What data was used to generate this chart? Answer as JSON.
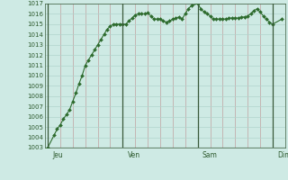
{
  "background_color": "#ceeae4",
  "plot_bg_color": "#ceeae4",
  "line_color": "#2d6b2d",
  "marker_color": "#2d6b2d",
  "grid_color": "#b0d4cc",
  "grid_color_v": "#c0a0a0",
  "tick_label_color": "#2d5a2d",
  "day_line_color": "#3a5a3a",
  "separator_color": "#3a5a3a",
  "ylim": [
    1003,
    1017
  ],
  "yticks": [
    1003,
    1004,
    1005,
    1006,
    1007,
    1008,
    1009,
    1010,
    1011,
    1012,
    1013,
    1014,
    1015,
    1016,
    1017
  ],
  "day_labels": [
    "Jeu",
    "Ven",
    "Sam",
    "Dim"
  ],
  "day_positions": [
    0,
    24,
    48,
    72
  ],
  "xlim": [
    -1,
    76
  ],
  "x_values": [
    0,
    2,
    3,
    4,
    5,
    6,
    7,
    8,
    9,
    10,
    11,
    12,
    13,
    14,
    15,
    16,
    17,
    18,
    19,
    20,
    21,
    22,
    23,
    24,
    25,
    26,
    27,
    28,
    29,
    30,
    31,
    32,
    33,
    34,
    35,
    36,
    37,
    38,
    39,
    40,
    41,
    42,
    43,
    44,
    45,
    46,
    48,
    49,
    50,
    51,
    52,
    53,
    54,
    55,
    56,
    57,
    58,
    59,
    60,
    61,
    62,
    63,
    64,
    65,
    66,
    67,
    68,
    69,
    70,
    71,
    72,
    75
  ],
  "y_values": [
    1003,
    1004.2,
    1004.8,
    1005.2,
    1005.8,
    1006.2,
    1006.7,
    1007.5,
    1008.3,
    1009.2,
    1010.0,
    1011.0,
    1011.5,
    1012.0,
    1012.5,
    1013.0,
    1013.5,
    1014.0,
    1014.5,
    1014.8,
    1015.0,
    1015.0,
    1015.0,
    1015.0,
    1015.0,
    1015.3,
    1015.6,
    1015.9,
    1016.0,
    1016.0,
    1016.0,
    1016.1,
    1015.8,
    1015.5,
    1015.5,
    1015.5,
    1015.3,
    1015.2,
    1015.3,
    1015.5,
    1015.6,
    1015.7,
    1015.5,
    1016.0,
    1016.5,
    1016.8,
    1017.0,
    1016.5,
    1016.2,
    1016.0,
    1015.8,
    1015.5,
    1015.5,
    1015.5,
    1015.5,
    1015.5,
    1015.6,
    1015.6,
    1015.6,
    1015.6,
    1015.7,
    1015.7,
    1015.8,
    1016.0,
    1016.3,
    1016.5,
    1016.2,
    1015.8,
    1015.5,
    1015.2,
    1015.0,
    1015.5
  ]
}
